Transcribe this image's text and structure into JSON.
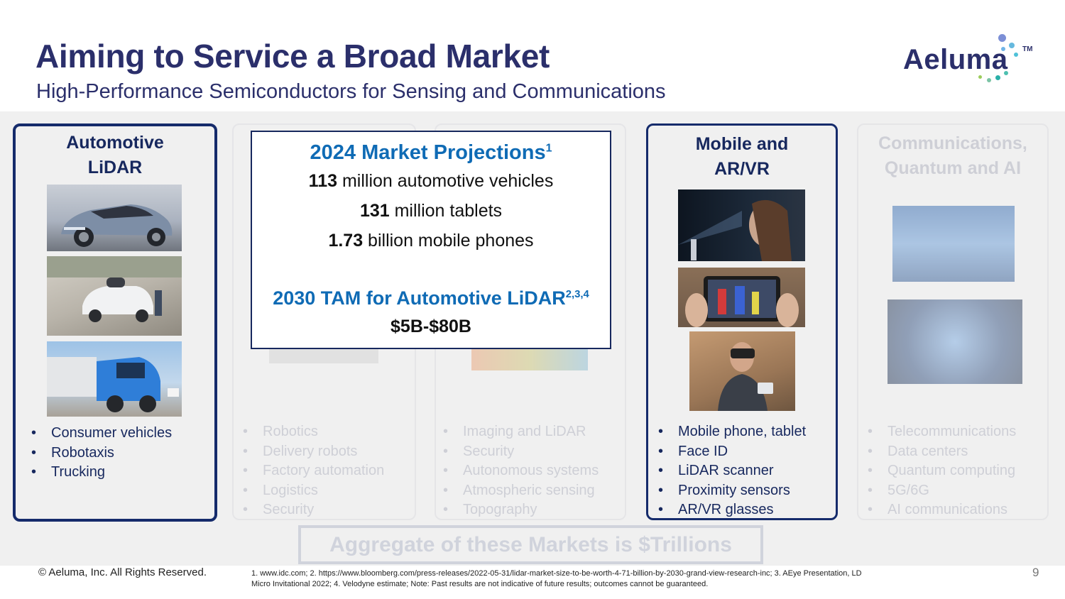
{
  "header": {
    "title": "Aiming to Service a Broad Market",
    "subtitle": "High-Performance Semiconductors for Sensing and Communications"
  },
  "logo": {
    "text": "Aeluma",
    "tm": "TM"
  },
  "cards": [
    {
      "title_line1": "Automotive",
      "title_line2": "LiDAR",
      "bullets": [
        "Consumer vehicles",
        "Robotaxis",
        "Trucking"
      ],
      "images": [
        "suv-concept-car-photo",
        "robotaxi-photo",
        "autonomous-truck-photo"
      ]
    },
    {
      "bullets": [
        "Robotics",
        "Delivery robots",
        "Factory automation",
        "Logistics",
        "Security"
      ]
    },
    {
      "bullets": [
        "Imaging and LiDAR",
        "Security",
        "Autonomous systems",
        "Atmospheric sensing",
        "Topography"
      ]
    },
    {
      "title_line1": "Mobile and",
      "title_line2": "AR/VR",
      "bullets": [
        "Mobile phone, tablet",
        "Face ID",
        "LiDAR scanner",
        "Proximity sensors",
        "AR/VR glasses"
      ],
      "images": [
        "face-scan-photo",
        "tablet-ar-photo",
        "vr-headset-photo"
      ]
    },
    {
      "title_line1": "Communications,",
      "title_line2": "Quantum and AI",
      "bullets": [
        "Telecommunications",
        "Data centers",
        "Quantum computing",
        "5G/6G",
        "AI communications"
      ],
      "images": [
        "data-center-photo",
        "ai-chip-graphic"
      ]
    }
  ],
  "projections": {
    "heading": "2024 Market Projections",
    "heading_sup": "1",
    "lines": [
      {
        "num": "113",
        "text": " million automotive vehicles"
      },
      {
        "num": "131",
        "text": " million tablets"
      },
      {
        "num": "1.73",
        "text": " billion mobile phones"
      }
    ],
    "tam_heading": "2030 TAM for Automotive LiDAR",
    "tam_sup": "2,3,4",
    "tam_value": "$5B-$80B"
  },
  "aggregate": "Aggregate of these Markets is $Trillions",
  "footer": {
    "copyright": "© Aeluma, Inc. All Rights Reserved.",
    "footnote": "1. www.idc.com; 2. https://www.bloomberg.com/press-releases/2022-05-31/lidar-market-size-to-be-worth-4-71-billion-by-2030-grand-view-research-inc; 3. AEye Presentation, LD Micro Invitational 2022; 4. Velodyne estimate; Note: Past results are not indicative of future results; outcomes cannot be guaranteed.",
    "page": "9"
  }
}
